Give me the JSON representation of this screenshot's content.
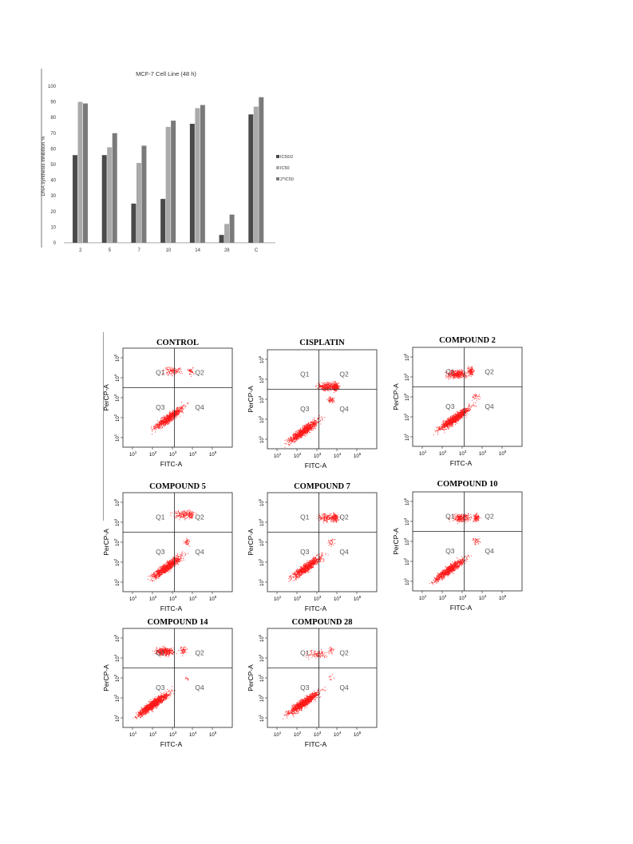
{
  "chart_data": [
    {
      "type": "bar",
      "title": "MCF-7  Cell Line (48 h)",
      "ylabel": "DNA synthesis inhibition %",
      "xlabel": "",
      "ylim": [
        0,
        100
      ],
      "yticks": [
        0,
        10,
        20,
        30,
        40,
        50,
        60,
        70,
        80,
        90,
        100
      ],
      "categories": [
        "2",
        "5",
        "7",
        "10",
        "14",
        "28",
        "C"
      ],
      "legend_position": "right",
      "grid": false,
      "series": [
        {
          "name": "IC50/2",
          "color": "#4a4a4a",
          "values": [
            56,
            56,
            25,
            28,
            76,
            5,
            82
          ]
        },
        {
          "name": "IC50",
          "color": "#aaaaaa",
          "values": [
            90,
            61,
            51,
            74,
            86,
            12,
            87
          ]
        },
        {
          "name": "2*IC50",
          "color": "#7a7a7a",
          "values": [
            89,
            70,
            62,
            78,
            88,
            18,
            93
          ]
        }
      ]
    },
    {
      "type": "scatter",
      "xlabel": "FITC-A",
      "ylabel": "PerCP-A",
      "x_scale": "log",
      "y_scale": "log",
      "quadrant_labels": [
        "Q1",
        "Q2",
        "Q3",
        "Q4"
      ],
      "point_color": "#ff1a1a",
      "panels": [
        {
          "title": "CONTROL"
        },
        {
          "title": "CISPLATIN"
        },
        {
          "title": "COMPOUND 2"
        },
        {
          "title": "COMPOUND 5"
        },
        {
          "title": "COMPOUND 7"
        },
        {
          "title": "COMPOUND 10"
        },
        {
          "title": "COMPOUND 14"
        },
        {
          "title": "COMPOUND 28"
        }
      ]
    }
  ]
}
